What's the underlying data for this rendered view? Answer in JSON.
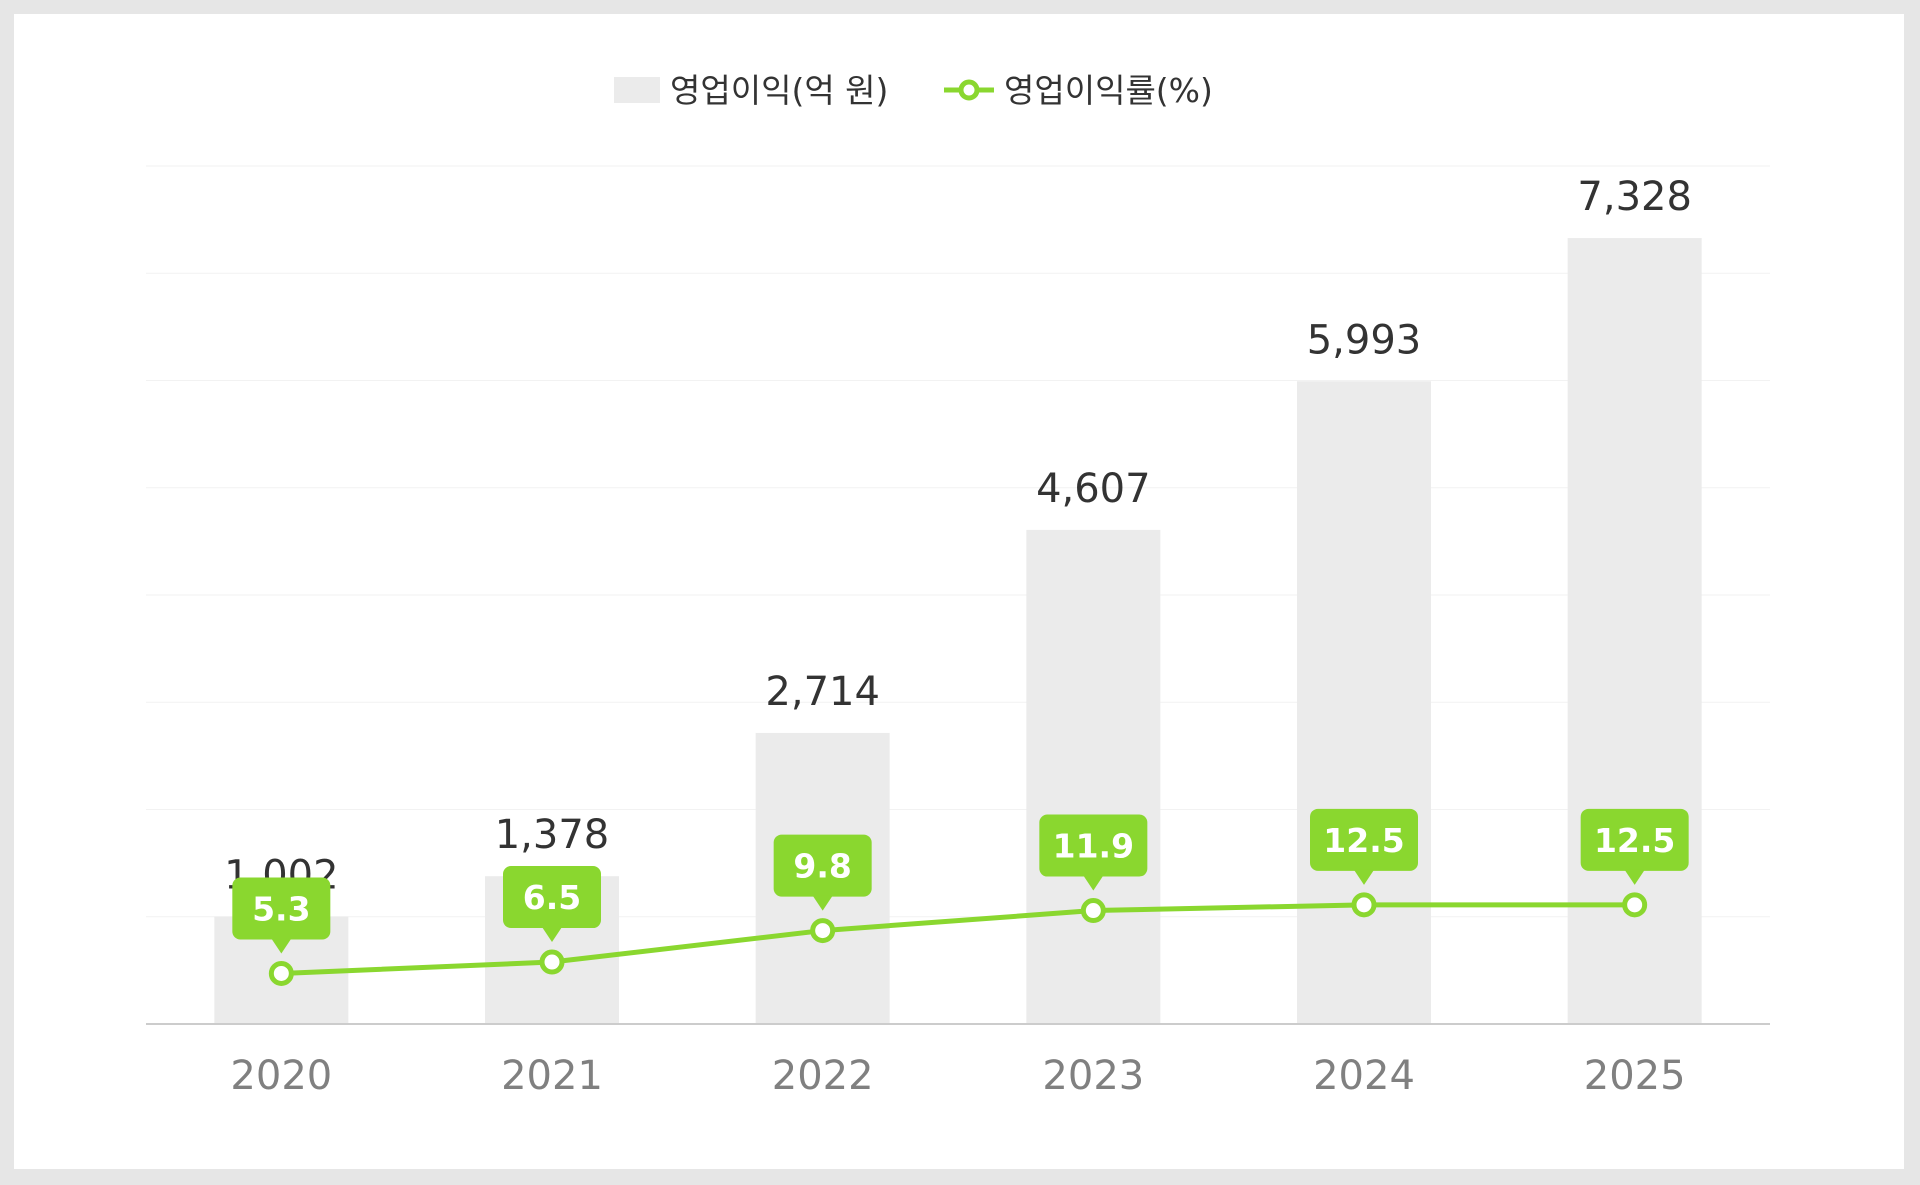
{
  "chart_data": {
    "type": "bar",
    "categories": [
      "2020",
      "2021",
      "2022",
      "2023",
      "2024",
      "2025"
    ],
    "series": [
      {
        "name": "영업이익(억 원)",
        "type": "bar",
        "values": [
          1002,
          1378,
          2714,
          4607,
          5993,
          7328
        ],
        "labels": [
          "1,002",
          "1,378",
          "2,714",
          "4,607",
          "5,993",
          "7,328"
        ],
        "color": "#ebebeb"
      },
      {
        "name": "영업이익률(%)",
        "type": "line",
        "values": [
          5.3,
          6.5,
          9.8,
          11.9,
          12.5,
          12.5
        ],
        "labels": [
          "5.3",
          "6.5",
          "9.8",
          "11.9",
          "12.5",
          "12.5"
        ],
        "color": "#8ad72f"
      }
    ],
    "ylim_bar": [
      0,
      8000
    ],
    "ylim_line": [
      0,
      90
    ],
    "grid": true,
    "legend_position": "top-center"
  }
}
